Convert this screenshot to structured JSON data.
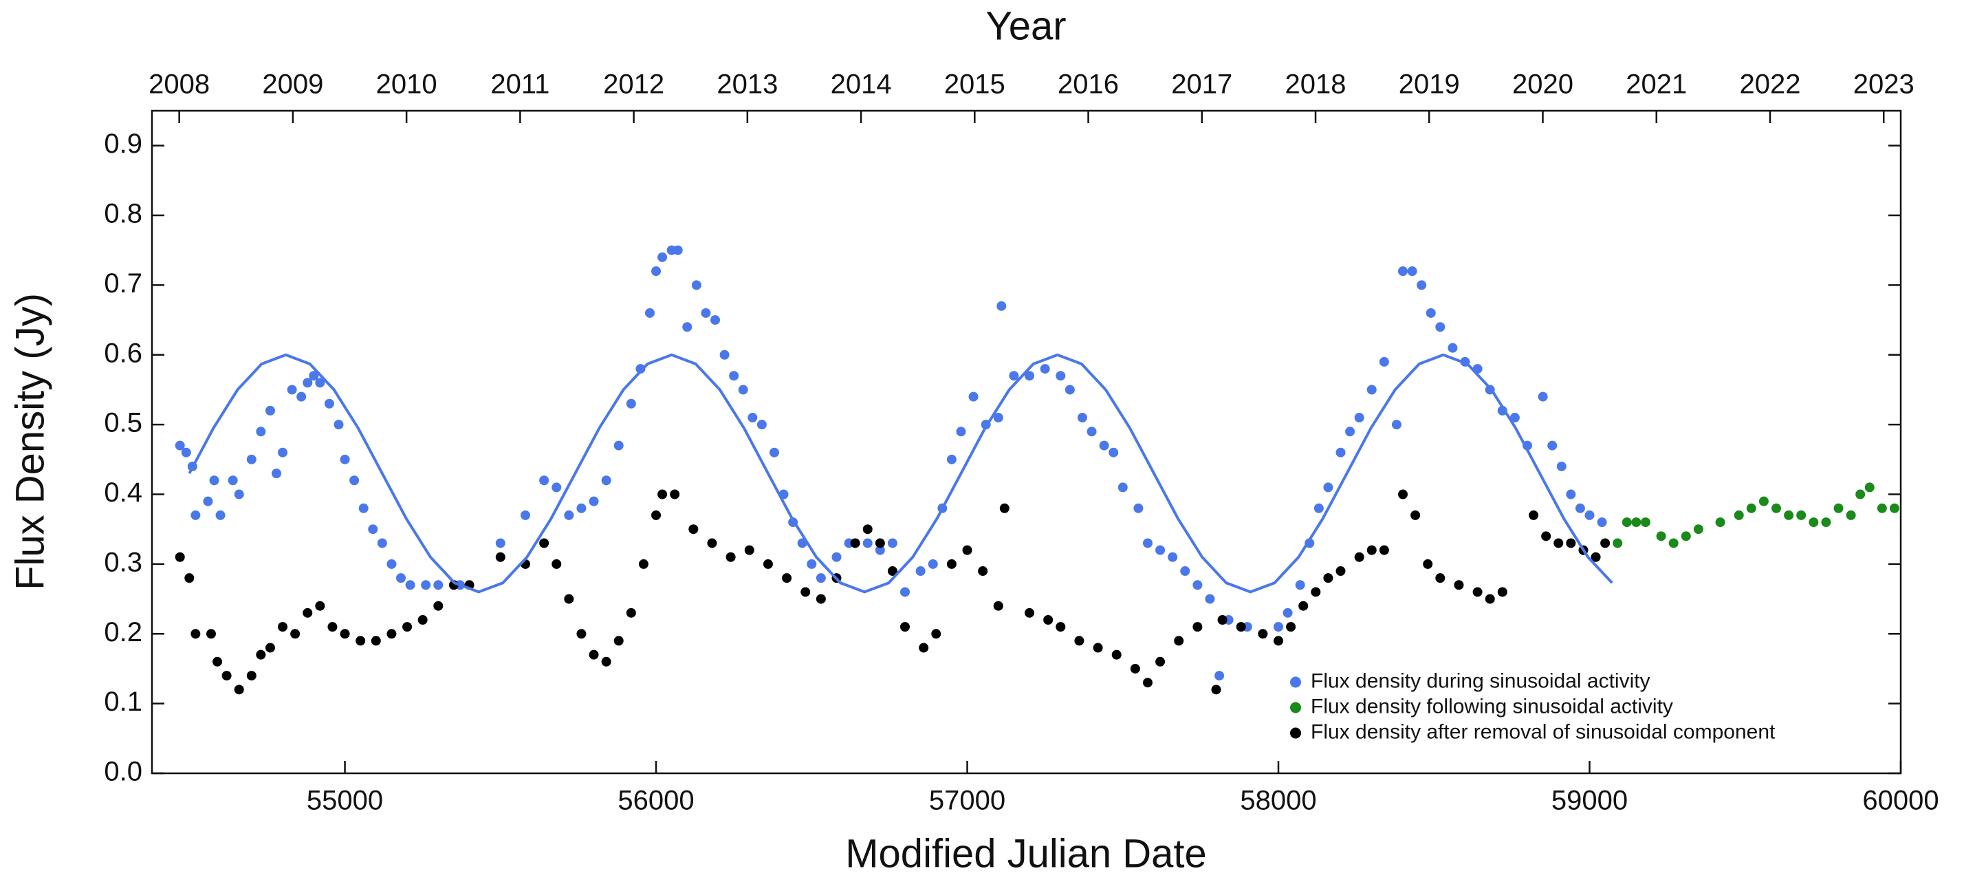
{
  "chart_data": {
    "type": "scatter",
    "xlabel": "Modified Julian Date",
    "ylabel": "Flux Density (Jy)",
    "x2label": "Year",
    "xlim": [
      54380,
      60000
    ],
    "xticks": [
      55000,
      56000,
      57000,
      58000,
      59000,
      60000
    ],
    "ylim": [
      0,
      0.95
    ],
    "yticks": [
      {
        "value": 0,
        "label": "0.0"
      },
      0.1,
      0.2,
      0.3,
      0.4,
      0.5,
      0.6,
      0.7,
      0.8,
      0.9
    ],
    "x2lim": [
      2007.76,
      2023.15
    ],
    "x2ticks": [
      2008,
      2009,
      2010,
      2011,
      2012,
      2013,
      2014,
      2015,
      2016,
      2017,
      2018,
      2019,
      2020,
      2021,
      2022,
      2023
    ],
    "legend": "lower right",
    "series": [
      {
        "name": "Flux density during sinusoidal activity",
        "color": "#4a78ea",
        "x": [
          54470,
          54490,
          54510,
          54520,
          54560,
          54580,
          54600,
          54640,
          54660,
          54700,
          54730,
          54760,
          54780,
          54800,
          54830,
          54860,
          54880,
          54900,
          54920,
          54950,
          54980,
          55000,
          55030,
          55060,
          55090,
          55120,
          55150,
          55180,
          55210,
          55260,
          55300,
          55370,
          55500,
          55580,
          55640,
          55680,
          55720,
          55760,
          55800,
          55840,
          55880,
          55920,
          55950,
          55980,
          56000,
          56020,
          56050,
          56070,
          56100,
          56130,
          56160,
          56190,
          56220,
          56250,
          56280,
          56310,
          56340,
          56380,
          56410,
          56440,
          56470,
          56500,
          56530,
          56580,
          56620,
          56680,
          56720,
          56760,
          56800,
          56850,
          56890,
          56920,
          56950,
          56980,
          57020,
          57060,
          57100,
          57110,
          57150,
          57200,
          57250,
          57300,
          57330,
          57370,
          57400,
          57440,
          57470,
          57500,
          57550,
          57580,
          57620,
          57660,
          57700,
          57740,
          57780,
          57810,
          57840,
          57900,
          58000,
          58030,
          58070,
          58100,
          58130,
          58160,
          58200,
          58230,
          58260,
          58300,
          58340,
          58380,
          58400,
          58430,
          58460,
          58490,
          58520,
          58560,
          58600,
          58640,
          58680,
          58720,
          58760,
          58800,
          58850,
          58880,
          58910,
          58940,
          58970,
          59000,
          59040
        ],
        "values": [
          0.47,
          0.46,
          0.44,
          0.37,
          0.39,
          0.42,
          0.37,
          0.42,
          0.4,
          0.45,
          0.49,
          0.52,
          0.43,
          0.46,
          0.55,
          0.54,
          0.56,
          0.57,
          0.56,
          0.53,
          0.5,
          0.45,
          0.42,
          0.38,
          0.35,
          0.33,
          0.3,
          0.28,
          0.27,
          0.27,
          0.27,
          0.27,
          0.33,
          0.37,
          0.42,
          0.41,
          0.37,
          0.38,
          0.39,
          0.42,
          0.47,
          0.53,
          0.58,
          0.66,
          0.72,
          0.74,
          0.75,
          0.75,
          0.64,
          0.7,
          0.66,
          0.65,
          0.6,
          0.57,
          0.55,
          0.51,
          0.5,
          0.46,
          0.4,
          0.36,
          0.33,
          0.3,
          0.28,
          0.31,
          0.33,
          0.33,
          0.32,
          0.33,
          0.26,
          0.29,
          0.3,
          0.38,
          0.45,
          0.49,
          0.54,
          0.5,
          0.51,
          0.67,
          0.57,
          0.57,
          0.58,
          0.57,
          0.55,
          0.51,
          0.49,
          0.47,
          0.46,
          0.41,
          0.38,
          0.33,
          0.32,
          0.31,
          0.29,
          0.27,
          0.25,
          0.14,
          0.22,
          0.21,
          0.21,
          0.23,
          0.27,
          0.33,
          0.38,
          0.41,
          0.46,
          0.49,
          0.51,
          0.55,
          0.59,
          0.5,
          0.72,
          0.72,
          0.7,
          0.66,
          0.64,
          0.61,
          0.59,
          0.58,
          0.55,
          0.52,
          0.51,
          0.47,
          0.54,
          0.47,
          0.44,
          0.4,
          0.38,
          0.37,
          0.36
        ]
      },
      {
        "name": "Flux density following sinusoidal activity",
        "color": "#1a8a1a",
        "x": [
          59090,
          59120,
          59150,
          59180,
          59230,
          59270,
          59310,
          59350,
          59420,
          59480,
          59520,
          59560,
          59600,
          59640,
          59680,
          59720,
          59760,
          59800,
          59840,
          59870,
          59900,
          59940,
          59980
        ],
        "values": [
          0.33,
          0.36,
          0.36,
          0.36,
          0.34,
          0.33,
          0.34,
          0.35,
          0.36,
          0.37,
          0.38,
          0.39,
          0.38,
          0.37,
          0.37,
          0.36,
          0.36,
          0.38,
          0.37,
          0.4,
          0.41,
          0.38,
          0.38
        ]
      },
      {
        "name": "Flux density after removal of sinusoidal component",
        "color": "#000000",
        "x": [
          54470,
          54500,
          54520,
          54570,
          54590,
          54620,
          54660,
          54700,
          54730,
          54760,
          54800,
          54840,
          54880,
          54920,
          54960,
          55000,
          55050,
          55100,
          55150,
          55200,
          55250,
          55300,
          55350,
          55400,
          55500,
          55580,
          55640,
          55680,
          55720,
          55760,
          55800,
          55840,
          55880,
          55920,
          55960,
          56000,
          56020,
          56060,
          56120,
          56180,
          56240,
          56300,
          56360,
          56420,
          56480,
          56530,
          56580,
          56640,
          56680,
          56720,
          56760,
          56800,
          56860,
          56900,
          56950,
          57000,
          57050,
          57100,
          57120,
          57200,
          57260,
          57300,
          57360,
          57420,
          57480,
          57540,
          57580,
          57620,
          57680,
          57740,
          57800,
          57820,
          57880,
          57950,
          58000,
          58040,
          58080,
          58120,
          58160,
          58200,
          58260,
          58300,
          58340,
          58400,
          58440,
          58480,
          58520,
          58580,
          58640,
          58680,
          58720,
          58820,
          58860,
          58900,
          58940,
          58980,
          59020,
          59050
        ],
        "values": [
          0.31,
          0.28,
          0.2,
          0.2,
          0.16,
          0.14,
          0.12,
          0.14,
          0.17,
          0.18,
          0.21,
          0.2,
          0.23,
          0.24,
          0.21,
          0.2,
          0.19,
          0.19,
          0.2,
          0.21,
          0.22,
          0.24,
          0.27,
          0.27,
          0.31,
          0.3,
          0.33,
          0.3,
          0.25,
          0.2,
          0.17,
          0.16,
          0.19,
          0.23,
          0.3,
          0.37,
          0.4,
          0.4,
          0.35,
          0.33,
          0.31,
          0.32,
          0.3,
          0.28,
          0.26,
          0.25,
          0.28,
          0.33,
          0.35,
          0.33,
          0.29,
          0.21,
          0.18,
          0.2,
          0.3,
          0.32,
          0.29,
          0.24,
          0.38,
          0.23,
          0.22,
          0.21,
          0.19,
          0.18,
          0.17,
          0.15,
          0.13,
          0.16,
          0.19,
          0.21,
          0.12,
          0.22,
          0.21,
          0.2,
          0.19,
          0.21,
          0.24,
          0.26,
          0.28,
          0.29,
          0.31,
          0.32,
          0.32,
          0.4,
          0.37,
          0.3,
          0.28,
          0.27,
          0.26,
          0.25,
          0.26,
          0.37,
          0.34,
          0.33,
          0.33,
          0.32,
          0.31,
          0.33
        ]
      },
      {
        "type": "line",
        "color": "#4a78ea",
        "x": [
          54500,
          54577.5,
          54655,
          54732.5,
          54810,
          54887.5,
          54965,
          55042.5,
          55120,
          55197.5,
          55275,
          55352.5,
          55430,
          55507.5,
          55585,
          55662.5,
          55740,
          55817.5,
          55895,
          55972.5,
          56050,
          56127.5,
          56205,
          56282.5,
          56360,
          56437.5,
          56515,
          56592.5,
          56670,
          56747.5,
          56825,
          56902.5,
          56980,
          57057.5,
          57135,
          57212.5,
          57290,
          57367.5,
          57445,
          57522.5,
          57600,
          57677.5,
          57755,
          57832.5,
          57910,
          57987.5,
          58065,
          58142.5,
          58220,
          58297.5,
          58375,
          58452.5,
          58530,
          58607.5,
          58685,
          58762.5,
          58840,
          58917.5,
          58995,
          59072.5
        ],
        "values": [
          0.43,
          0.495,
          0.55,
          0.587,
          0.6,
          0.587,
          0.55,
          0.495,
          0.43,
          0.365,
          0.31,
          0.273,
          0.26,
          0.273,
          0.31,
          0.365,
          0.43,
          0.495,
          0.55,
          0.587,
          0.6,
          0.587,
          0.55,
          0.495,
          0.43,
          0.365,
          0.31,
          0.273,
          0.26,
          0.273,
          0.31,
          0.365,
          0.43,
          0.495,
          0.55,
          0.587,
          0.6,
          0.587,
          0.55,
          0.495,
          0.43,
          0.365,
          0.31,
          0.273,
          0.26,
          0.273,
          0.31,
          0.365,
          0.43,
          0.495,
          0.55,
          0.587,
          0.6,
          0.587,
          0.55,
          0.495,
          0.43,
          0.365,
          0.31,
          0.273
        ]
      }
    ]
  }
}
